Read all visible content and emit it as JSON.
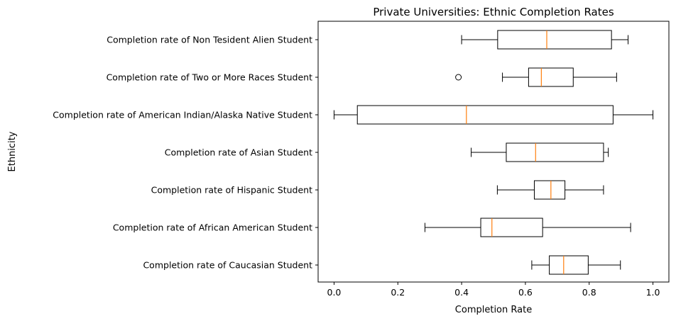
{
  "chart_data": {
    "type": "boxplot",
    "orientation": "horizontal",
    "title": "Private Universities: Ethnic Completion Rates",
    "xlabel": "Completion Rate",
    "ylabel": "Ethnicity",
    "xlim": [
      -0.05,
      1.05
    ],
    "x_ticks": [
      "0.0",
      "0.2",
      "0.4",
      "0.6",
      "0.8",
      "1.0"
    ],
    "grid": false,
    "colors": {
      "box": "#000000",
      "median": "#ff7f0e"
    },
    "categories": [
      "Completion rate of Caucasian Student",
      "Completion rate of African American Student",
      "Completion rate of Hispanic Student",
      "Completion rate of Asian Student",
      "Completion rate of American Indian/Alaska Native Student",
      "Completion rate of Two or More Races Student",
      "Completion rate of Non Tesident Alien Student"
    ],
    "boxes": [
      {
        "whisker_low": 0.62,
        "q1": 0.675,
        "median": 0.72,
        "q3": 0.797,
        "whisker_high": 0.898,
        "outliers": []
      },
      {
        "whisker_low": 0.285,
        "q1": 0.46,
        "median": 0.495,
        "q3": 0.654,
        "whisker_high": 0.93,
        "outliers": []
      },
      {
        "whisker_low": 0.512,
        "q1": 0.628,
        "median": 0.68,
        "q3": 0.724,
        "whisker_high": 0.845,
        "outliers": []
      },
      {
        "whisker_low": 0.43,
        "q1": 0.54,
        "median": 0.632,
        "q3": 0.845,
        "whisker_high": 0.86,
        "outliers": []
      },
      {
        "whisker_low": 0.0,
        "q1": 0.073,
        "median": 0.415,
        "q3": 0.875,
        "whisker_high": 1.0,
        "outliers": []
      },
      {
        "whisker_low": 0.528,
        "q1": 0.61,
        "median": 0.65,
        "q3": 0.75,
        "whisker_high": 0.886,
        "outliers": [
          0.39
        ]
      },
      {
        "whisker_low": 0.4,
        "q1": 0.513,
        "median": 0.667,
        "q3": 0.87,
        "whisker_high": 0.922,
        "outliers": []
      }
    ]
  }
}
